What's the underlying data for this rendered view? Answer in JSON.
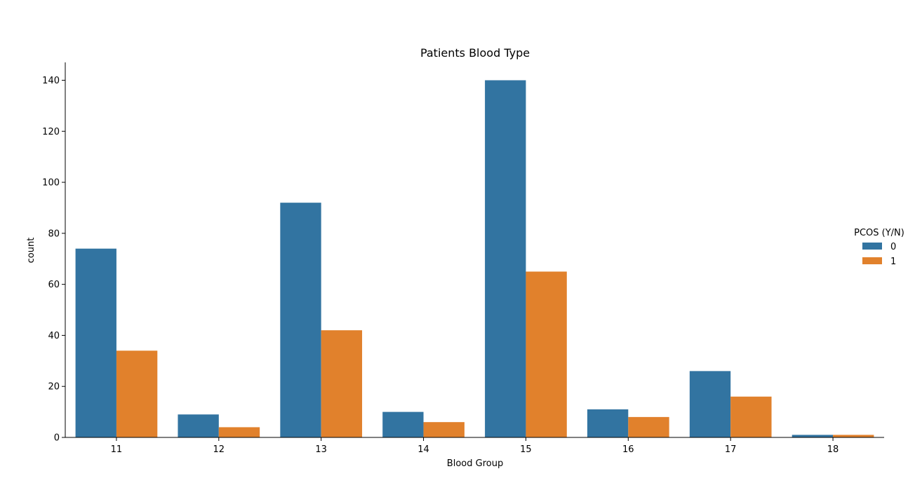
{
  "chart_data": {
    "type": "bar",
    "title": "Patients Blood Type",
    "xlabel": "Blood Group",
    "ylabel": "count",
    "categories": [
      "11",
      "12",
      "13",
      "14",
      "15",
      "16",
      "17",
      "18"
    ],
    "series": [
      {
        "name": "0",
        "color": "#3274a1",
        "values": [
          74,
          9,
          92,
          10,
          140,
          11,
          26,
          1
        ]
      },
      {
        "name": "1",
        "color": "#e1812c",
        "values": [
          34,
          4,
          42,
          6,
          65,
          8,
          16,
          1
        ]
      }
    ],
    "ylim": [
      0,
      147
    ],
    "yticks": [
      0,
      20,
      40,
      60,
      80,
      100,
      120,
      140
    ],
    "grid": false,
    "legend": {
      "title": "PCOS (Y/N)",
      "placement": "right"
    }
  }
}
